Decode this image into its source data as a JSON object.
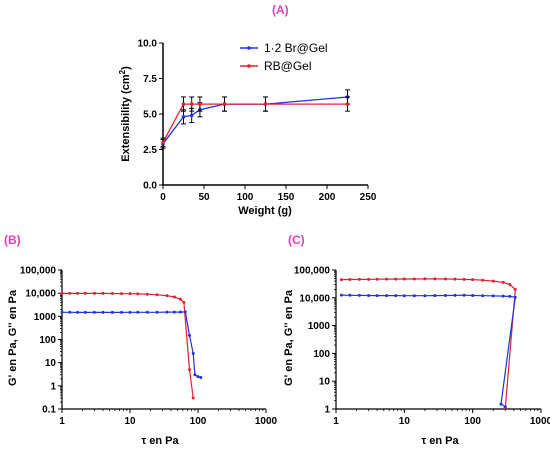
{
  "colors": {
    "blue": "#2233dd",
    "red": "#dd2233",
    "panel_label": "#e040c0"
  },
  "chart_data": [
    {
      "panel": "(A)",
      "type": "line",
      "xlabel": "Weight (g)",
      "ylabel": "Extensibility (cm²)",
      "xlim": [
        0,
        250
      ],
      "ylim": [
        0,
        10
      ],
      "xticks": [
        "0",
        "50",
        "100",
        "150",
        "200",
        "250"
      ],
      "yticks": [
        "0.0",
        "2.5",
        "5.0",
        "7.5",
        "10.0"
      ],
      "legend_position": "top-right",
      "series": [
        {
          "name": "1·2 Br@Gel",
          "color": "#2233dd",
          "x": [
            0,
            25,
            35,
            45,
            75,
            125,
            225
          ],
          "y": [
            2.9,
            4.8,
            4.9,
            5.3,
            5.7,
            5.7,
            6.2
          ],
          "err": [
            0.3,
            0.5,
            0.5,
            0.5,
            0.5,
            0.5,
            0.5
          ]
        },
        {
          "name": "RB@Gel",
          "color": "#dd2233",
          "x": [
            0,
            25,
            35,
            45,
            75,
            125,
            225
          ],
          "y": [
            3.0,
            5.7,
            5.7,
            5.7,
            5.7,
            5.7,
            5.7
          ],
          "err": [
            0.3,
            0.5,
            0.5,
            0.5,
            0.5,
            0.5,
            0.5
          ]
        }
      ]
    },
    {
      "panel": "(B)",
      "type": "line",
      "xscale": "log",
      "yscale": "log",
      "xlabel": "τ en Pa",
      "ylabel": "G' en Pa, G'' en Pa",
      "xlim": [
        1,
        1000
      ],
      "ylim": [
        0.1,
        100000
      ],
      "xticks": [
        "1",
        "10",
        "100",
        "1000"
      ],
      "yticks": [
        "0.1",
        "1",
        "10",
        "100",
        "1000",
        "10,000",
        "100,000"
      ],
      "series": [
        {
          "color": "#dd2233",
          "x": [
            1,
            1.3,
            1.7,
            2.2,
            3,
            4,
            5.5,
            7.5,
            10,
            13,
            18,
            25,
            35,
            45,
            55,
            62,
            75,
            85
          ],
          "y": [
            9800,
            9800,
            9800,
            9800,
            9800,
            9750,
            9700,
            9600,
            9500,
            9300,
            9000,
            8500,
            7800,
            6800,
            5500,
            4000,
            5,
            0.3
          ]
        },
        {
          "color": "#2233dd",
          "x": [
            1,
            1.3,
            1.7,
            2.2,
            3,
            4,
            5.5,
            7.5,
            10,
            13,
            18,
            25,
            35,
            45,
            55,
            65,
            75,
            85,
            90,
            100,
            110
          ],
          "y": [
            1500,
            1500,
            1480,
            1480,
            1480,
            1480,
            1480,
            1480,
            1490,
            1500,
            1500,
            1500,
            1520,
            1520,
            1530,
            1550,
            150,
            25,
            3,
            2.5,
            2.3
          ]
        }
      ]
    },
    {
      "panel": "(C)",
      "type": "line",
      "xscale": "log",
      "yscale": "log",
      "xlabel": "τ en Pa",
      "ylabel": "G' en Pa, G'' en Pa",
      "xlim": [
        1,
        1000
      ],
      "ylim": [
        1,
        100000
      ],
      "xticks": [
        "1",
        "10",
        "100",
        "1000"
      ],
      "yticks": [
        "1",
        "10",
        "100",
        "1000",
        "10,000",
        "100,000"
      ],
      "series": [
        {
          "color": "#dd2233",
          "x": [
            1.2,
            1.6,
            2.2,
            3,
            4,
            5.5,
            7.5,
            10,
            14,
            20,
            28,
            40,
            55,
            75,
            100,
            140,
            200,
            280,
            350,
            420,
            300
          ],
          "y": [
            45000,
            45500,
            46000,
            46000,
            46500,
            47000,
            47000,
            47500,
            47500,
            48000,
            48000,
            47500,
            47000,
            46000,
            45000,
            43000,
            40000,
            36000,
            30000,
            20000,
            1.1
          ]
        },
        {
          "color": "#2233dd",
          "x": [
            1.2,
            1.6,
            2.2,
            3,
            4,
            5.5,
            7.5,
            10,
            14,
            20,
            28,
            40,
            55,
            75,
            100,
            140,
            200,
            280,
            350,
            420,
            260,
            300
          ],
          "y": [
            12500,
            12300,
            12200,
            12100,
            12000,
            12000,
            12000,
            11900,
            11900,
            11900,
            12000,
            12100,
            12200,
            12400,
            12100,
            11900,
            11700,
            11500,
            11200,
            10500,
            1.5,
            1.2
          ]
        }
      ]
    }
  ]
}
